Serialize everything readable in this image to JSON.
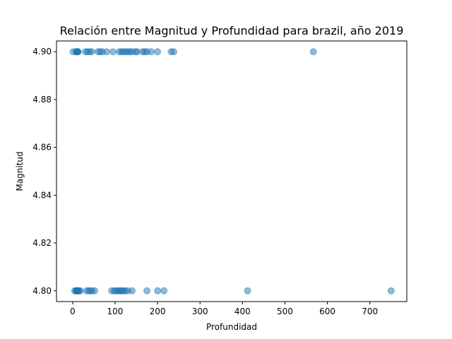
{
  "chart_data": {
    "type": "scatter",
    "title": "Relación entre Magnitud y Profundidad para brazil, año 2019",
    "xlabel": "Profundidad",
    "ylabel": "Magnitud",
    "xlim": [
      -38,
      787
    ],
    "ylim": [
      4.7955,
      4.9045
    ],
    "xticks": [
      0,
      100,
      200,
      300,
      400,
      500,
      600,
      700
    ],
    "xtick_labels": [
      "0",
      "100",
      "200",
      "300",
      "400",
      "500",
      "600",
      "700"
    ],
    "yticks": [
      4.8,
      4.82,
      4.84,
      4.86,
      4.88,
      4.9
    ],
    "ytick_labels": [
      "4.80",
      "4.82",
      "4.84",
      "4.86",
      "4.88",
      "4.90"
    ],
    "grid": false,
    "point_color": "#1f77b4",
    "point_alpha": 0.5,
    "x": [
      1,
      8,
      10,
      10,
      11,
      12,
      13,
      30,
      35,
      40,
      45,
      60,
      65,
      70,
      80,
      95,
      110,
      115,
      120,
      125,
      130,
      135,
      140,
      148,
      152,
      165,
      170,
      175,
      185,
      200,
      232,
      238,
      567,
      5,
      8,
      10,
      10,
      10,
      11,
      12,
      13,
      15,
      18,
      33,
      38,
      42,
      46,
      52,
      92,
      98,
      102,
      106,
      110,
      113,
      116,
      120,
      124,
      130,
      140,
      175,
      200,
      215,
      412,
      750
    ],
    "y": [
      4.9,
      4.9,
      4.9,
      4.9,
      4.9,
      4.9,
      4.9,
      4.9,
      4.9,
      4.9,
      4.9,
      4.9,
      4.9,
      4.9,
      4.9,
      4.9,
      4.9,
      4.9,
      4.9,
      4.9,
      4.9,
      4.9,
      4.9,
      4.9,
      4.9,
      4.9,
      4.9,
      4.9,
      4.9,
      4.9,
      4.9,
      4.9,
      4.9,
      4.8,
      4.8,
      4.8,
      4.8,
      4.8,
      4.8,
      4.8,
      4.8,
      4.8,
      4.8,
      4.8,
      4.8,
      4.8,
      4.8,
      4.8,
      4.8,
      4.8,
      4.8,
      4.8,
      4.8,
      4.8,
      4.8,
      4.8,
      4.8,
      4.8,
      4.8,
      4.8,
      4.8,
      4.8,
      4.8,
      4.8
    ]
  }
}
